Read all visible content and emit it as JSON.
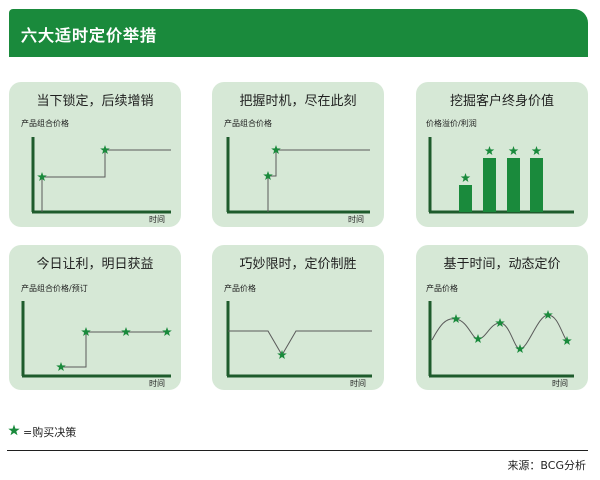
{
  "header": {
    "title": "六大适时定价举措"
  },
  "panels": [
    {
      "title": "当下锁定，后续增销",
      "ylabel": "产品组合价格",
      "xlabel": "时间"
    },
    {
      "title": "把握时机，尽在此刻",
      "ylabel": "产品组合价格",
      "xlabel": "时间"
    },
    {
      "title": "挖掘客户终身价值",
      "ylabel": "价格溢价/利润",
      "xlabel": ""
    },
    {
      "title": "今日让利，明日获益",
      "ylabel": "产品组合价格/预订",
      "xlabel": "时间"
    },
    {
      "title": "巧妙限时，定价制胜",
      "ylabel": "产品价格",
      "xlabel": "时间"
    },
    {
      "title": "基于时间，动态定价",
      "ylabel": "产品价格",
      "xlabel": "时间"
    }
  ],
  "legend": {
    "text": "=购买决策",
    "icon": "star-icon"
  },
  "source": "来源：BCG分析",
  "colors": {
    "brand_green": "#1a8a3c",
    "axis": "#1e5b2c",
    "panel_bg": "#d6e8d6",
    "curve": "#5a5a5a",
    "star": "#1a8a3c"
  }
}
